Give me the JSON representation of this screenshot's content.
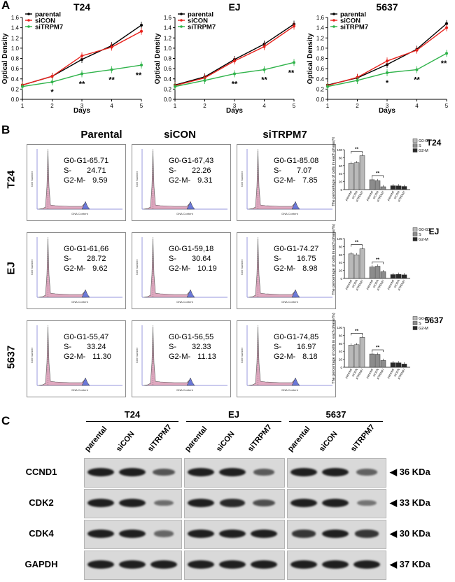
{
  "panel_labels": {
    "a": "A",
    "b": "B",
    "c": "C"
  },
  "colors": {
    "parental": "#000000",
    "siCON": "#e8221c",
    "siTRPM7": "#2fb34a",
    "histFill": "#e0a8c0",
    "g2Fill": "#6b78d8"
  },
  "chart_data": [
    {
      "type": "line",
      "title": "T24",
      "xlabel": "Days",
      "ylabel": "Optical Density",
      "x": [
        1,
        2,
        3,
        4,
        5
      ],
      "xlim": [
        1,
        5
      ],
      "ylim": [
        0.0,
        1.6
      ],
      "yticks": [
        "0.0",
        "0.2",
        "0.4",
        "0.6",
        "0.8",
        "1.0",
        "1.2",
        "1.4",
        "1.6"
      ],
      "xticks": [
        "1",
        "2",
        "3",
        "4",
        "5"
      ],
      "series": [
        {
          "name": "parental",
          "values": [
            0.28,
            0.45,
            0.78,
            1.05,
            1.45
          ]
        },
        {
          "name": "siCON",
          "values": [
            0.28,
            0.45,
            0.85,
            1.02,
            1.33
          ]
        },
        {
          "name": "siTRPM7",
          "values": [
            0.25,
            0.34,
            0.5,
            0.58,
            0.67
          ]
        }
      ],
      "annotations": [
        {
          "x": 2,
          "text": "*"
        },
        {
          "x": 3,
          "text": "**"
        },
        {
          "x": 4,
          "text": "**"
        },
        {
          "x": 5,
          "text": "**"
        }
      ],
      "legend": [
        "parental",
        "siCON",
        "siTRPM7"
      ]
    },
    {
      "type": "line",
      "title": "EJ",
      "xlabel": "Days",
      "ylabel": "Optical Density",
      "x": [
        1,
        2,
        3,
        4,
        5
      ],
      "xlim": [
        1,
        5
      ],
      "ylim": [
        0.0,
        1.6
      ],
      "yticks": [
        "0.0",
        "0.2",
        "0.4",
        "0.6",
        "0.8",
        "1.0",
        "1.2",
        "1.4",
        "1.6"
      ],
      "xticks": [
        "1",
        "2",
        "3",
        "4",
        "5"
      ],
      "series": [
        {
          "name": "parental",
          "values": [
            0.28,
            0.44,
            0.78,
            1.08,
            1.47
          ]
        },
        {
          "name": "siCON",
          "values": [
            0.27,
            0.42,
            0.75,
            1.03,
            1.43
          ]
        },
        {
          "name": "siTRPM7",
          "values": [
            0.25,
            0.37,
            0.5,
            0.58,
            0.72
          ]
        }
      ],
      "annotations": [
        {
          "x": 3,
          "text": "**"
        },
        {
          "x": 4,
          "text": "**"
        },
        {
          "x": 5,
          "text": "**"
        }
      ],
      "legend": [
        "parental",
        "siCON",
        "siTRPM7"
      ]
    },
    {
      "type": "line",
      "title": "5637",
      "xlabel": "Days",
      "ylabel": "Optical Density",
      "x": [
        1,
        2,
        3,
        4,
        5
      ],
      "xlim": [
        1,
        5
      ],
      "ylim": [
        0.0,
        1.6
      ],
      "yticks": [
        "0.0",
        "0.2",
        "0.4",
        "0.6",
        "0.8",
        "1.0",
        "1.2",
        "1.4",
        "1.6"
      ],
      "xticks": [
        "1",
        "2",
        "3",
        "4",
        "5"
      ],
      "series": [
        {
          "name": "parental",
          "values": [
            0.28,
            0.42,
            0.68,
            0.98,
            1.48
          ]
        },
        {
          "name": "siCON",
          "values": [
            0.27,
            0.43,
            0.75,
            0.96,
            1.4
          ]
        },
        {
          "name": "siTRPM7",
          "values": [
            0.25,
            0.37,
            0.52,
            0.58,
            0.9
          ]
        }
      ],
      "annotations": [
        {
          "x": 3,
          "text": "*"
        },
        {
          "x": 4,
          "text": "**"
        },
        {
          "x": 5,
          "text": "**"
        }
      ],
      "legend": [
        "parental",
        "siCON",
        "siTRPM7"
      ]
    },
    {
      "type": "bar",
      "title": "T24",
      "ylabel": "The percentage of cells in each phase(%)",
      "categories": [
        "parental",
        "siCON",
        "siTRPM7"
      ],
      "groups": [
        "G0-G1",
        "S",
        "G2-M"
      ],
      "ylim": [
        0,
        100
      ],
      "series": [
        {
          "name": "G0-G1",
          "values": [
            65.71,
            67.43,
            85.08
          ]
        },
        {
          "name": "S",
          "values": [
            24.71,
            22.26,
            7.07
          ]
        },
        {
          "name": "G2-M",
          "values": [
            9.59,
            9.31,
            7.85
          ]
        }
      ],
      "significance": [
        "**",
        "**"
      ]
    },
    {
      "type": "bar",
      "title": "EJ",
      "ylabel": "The percentage of cells in each phase(%)",
      "categories": [
        "parental",
        "siCON",
        "siTRPM7"
      ],
      "groups": [
        "G0-G1",
        "S",
        "G2-M"
      ],
      "ylim": [
        0,
        100
      ],
      "series": [
        {
          "name": "G0-G1",
          "values": [
            61.66,
            59.18,
            74.27
          ]
        },
        {
          "name": "S",
          "values": [
            28.72,
            30.64,
            16.75
          ]
        },
        {
          "name": "G2-M",
          "values": [
            9.62,
            10.19,
            8.98
          ]
        }
      ],
      "significance": [
        "**",
        "**"
      ]
    },
    {
      "type": "bar",
      "title": "5637",
      "ylabel": "The percentage of cells in each phase(%)",
      "categories": [
        "parental",
        "siCON",
        "siTRPM7"
      ],
      "groups": [
        "G0-G1",
        "S",
        "G2-M"
      ],
      "ylim": [
        0,
        100
      ],
      "series": [
        {
          "name": "G0-G1",
          "values": [
            55.47,
            56.55,
            74.85
          ]
        },
        {
          "name": "S",
          "values": [
            33.24,
            32.33,
            16.97
          ]
        },
        {
          "name": "G2-M",
          "values": [
            11.3,
            11.13,
            8.18
          ]
        }
      ],
      "significance": [
        "**",
        "**"
      ]
    }
  ],
  "flow": {
    "columns": [
      "Parental",
      "siCON",
      "siTRPM7"
    ],
    "rows": [
      {
        "label": "T24",
        "cells": [
          {
            "g0": "G0-G1-65.71",
            "s_k": "S-",
            "s_v": "24.71",
            "g2_k": "G2-M-",
            "g2_v": "9.59"
          },
          {
            "g0": "G0-G1-67,43",
            "s_k": "S-",
            "s_v": "22.26",
            "g2_k": "G2-M-",
            "g2_v": "9.31"
          },
          {
            "g0": "G0-G1-85.08",
            "s_k": "S-",
            "s_v": "7.07",
            "g2_k": "G2-M-",
            "g2_v": "7.85"
          }
        ]
      },
      {
        "label": "EJ",
        "cells": [
          {
            "g0": "G0-G1-61,66",
            "s_k": "S-",
            "s_v": "28.72",
            "g2_k": "G2-M-",
            "g2_v": "9.62"
          },
          {
            "g0": "G0-G1-59,18",
            "s_k": "S-",
            "s_v": "30.64",
            "g2_k": "G2-M-",
            "g2_v": "10.19"
          },
          {
            "g0": "G0-G1-74.27",
            "s_k": "S-",
            "s_v": "16.75",
            "g2_k": "G2-M-",
            "g2_v": "8.98"
          }
        ]
      },
      {
        "label": "5637",
        "cells": [
          {
            "g0": "G0-G1-55,47",
            "s_k": "S-",
            "s_v": "33.24",
            "g2_k": "G2-M-",
            "g2_v": "11.30"
          },
          {
            "g0": "G0-G1-56,55",
            "s_k": "S-",
            "s_v": "32.33",
            "g2_k": "G2-M-",
            "g2_v": "11.13"
          },
          {
            "g0": "G0-G1-74,85",
            "s_k": "S-",
            "s_v": "16.97",
            "g2_k": "G2-M-",
            "g2_v": "8.18"
          }
        ]
      }
    ],
    "axis_y": "Cell Number",
    "axis_x": "DNA Content"
  },
  "western": {
    "groups": [
      "T24",
      "EJ",
      "5637"
    ],
    "lanes": [
      "parental",
      "siCON",
      "siTRPM7"
    ],
    "proteins": [
      {
        "name": "CCND1",
        "size": "36 KDa",
        "intensity": [
          [
            1,
            1,
            0.55
          ],
          [
            1,
            1,
            0.5
          ],
          [
            1,
            1,
            0.45
          ]
        ]
      },
      {
        "name": "CDK2",
        "size": "33 KDa",
        "intensity": [
          [
            1,
            1,
            0.35
          ],
          [
            1,
            0.9,
            0.6
          ],
          [
            1,
            1,
            0.3
          ]
        ]
      },
      {
        "name": "CDK4",
        "size": "30 KDa",
        "intensity": [
          [
            1,
            1,
            0.4
          ],
          [
            1,
            1,
            1
          ],
          [
            0.8,
            1,
            0.8
          ]
        ]
      },
      {
        "name": "GAPDH",
        "size": "37 KDa",
        "intensity": [
          [
            1,
            1,
            1
          ],
          [
            1,
            1,
            1
          ],
          [
            1,
            1,
            1
          ]
        ]
      }
    ],
    "arrow": "◀"
  }
}
